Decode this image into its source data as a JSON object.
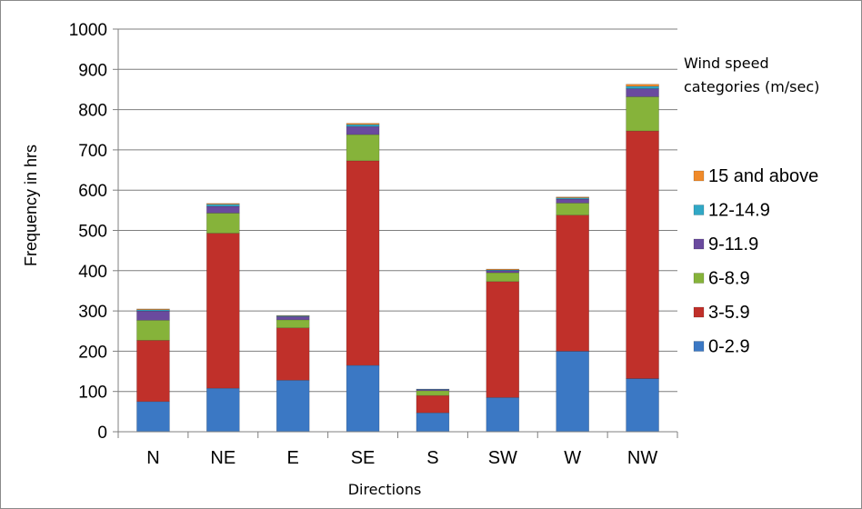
{
  "chart_data": {
    "type": "bar",
    "stacked": true,
    "title": "",
    "xlabel": "Directions",
    "ylabel": "Frequency in hrs",
    "ylim": [
      0,
      1000
    ],
    "yticks": [
      "0",
      "100",
      "200",
      "300",
      "400",
      "500",
      "600",
      "700",
      "800",
      "900",
      "1000"
    ],
    "grid": true,
    "legend_position": "right",
    "legend_title": [
      "Wind speed",
      "categories (m/sec)"
    ],
    "categories": [
      "N",
      "NE",
      "E",
      "SE",
      "S",
      "SW",
      "W",
      "NW"
    ],
    "series": [
      {
        "name": "0-2.9",
        "color": "#3b78c4",
        "values": [
          75,
          108,
          128,
          165,
          47,
          85,
          200,
          132
        ]
      },
      {
        "name": "3-5.9",
        "color": "#c0302a",
        "values": [
          152,
          385,
          130,
          508,
          43,
          288,
          338,
          615
        ]
      },
      {
        "name": "6-8.9",
        "color": "#86b33a",
        "values": [
          50,
          50,
          20,
          65,
          12,
          22,
          30,
          85
        ]
      },
      {
        "name": "9-11.9",
        "color": "#6a4a9e",
        "values": [
          23,
          17,
          8,
          20,
          3,
          5,
          10,
          20
        ]
      },
      {
        "name": "12-14.9",
        "color": "#31a8c6",
        "values": [
          3,
          5,
          2,
          5,
          1,
          2,
          3,
          6
        ]
      },
      {
        "name": "15 and above",
        "color": "#f08a2a",
        "values": [
          2,
          2,
          1,
          3,
          0,
          2,
          2,
          5
        ]
      }
    ]
  }
}
